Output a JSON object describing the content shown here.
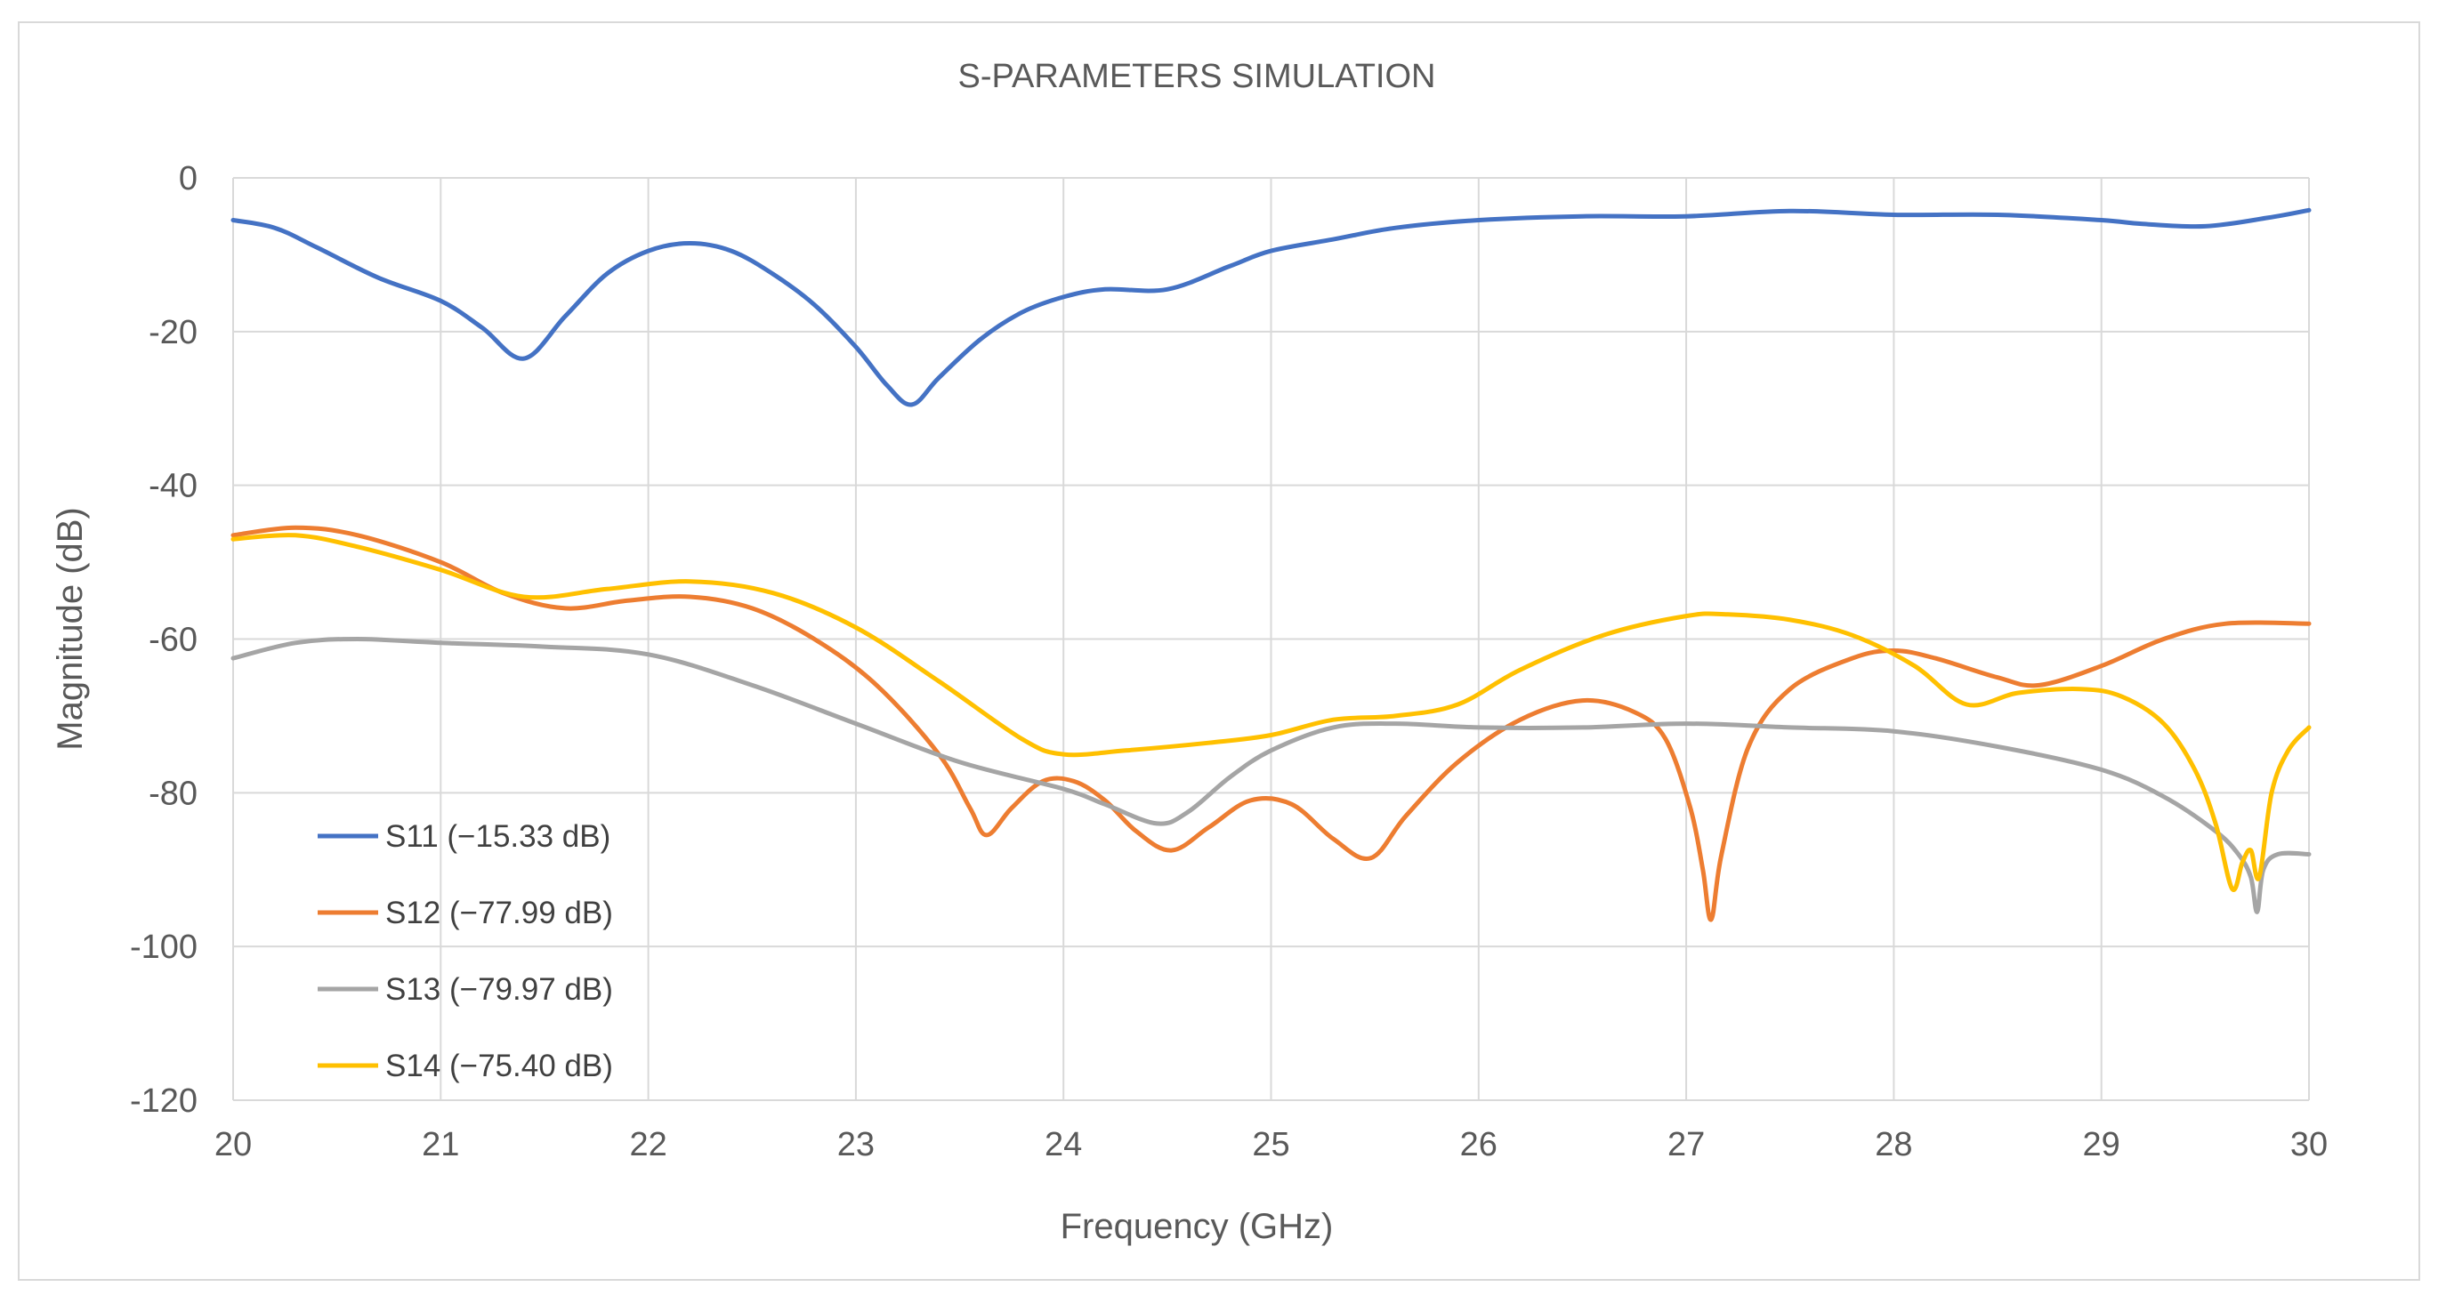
{
  "chart_data": {
    "type": "line",
    "title": "S-PARAMETERS SIMULATION",
    "xlabel": "Frequency (GHz)",
    "ylabel": "Magnitude (dB)",
    "xlim": [
      20,
      30
    ],
    "ylim": [
      -120,
      0
    ],
    "xticks": [
      20,
      21,
      22,
      23,
      24,
      25,
      26,
      27,
      28,
      29,
      30
    ],
    "yticks": [
      0,
      -20,
      -40,
      -60,
      -80,
      -100,
      -120
    ],
    "xtick_labels": [
      "20",
      "21",
      "22",
      "23",
      "24",
      "25",
      "26",
      "27",
      "28",
      "29",
      "30"
    ],
    "ytick_labels": [
      "0",
      "-20",
      "-40",
      "-60",
      "-80",
      "-100",
      "-120"
    ],
    "grid": true,
    "legend_position": "bottom-left",
    "series": [
      {
        "name": "S11",
        "legend": "S11 (−15.33 dB)",
        "color": "#4472C4",
        "x": [
          20,
          20.2,
          20.4,
          20.7,
          21,
          21.2,
          21.4,
          21.6,
          21.8,
          22,
          22.2,
          22.4,
          22.6,
          22.8,
          23,
          23.15,
          23.27,
          23.4,
          23.6,
          23.8,
          24,
          24.2,
          24.5,
          24.8,
          25,
          25.3,
          25.6,
          26,
          26.5,
          27,
          27.5,
          28,
          28.5,
          29,
          29.2,
          29.5,
          29.8,
          30
        ],
        "y": [
          -5.5,
          -6.5,
          -9,
          -13,
          -16,
          -19.5,
          -23.5,
          -18,
          -12.5,
          -9.5,
          -8.5,
          -9.5,
          -12.5,
          -16.5,
          -22,
          -27,
          -29.5,
          -26,
          -21,
          -17.5,
          -15.5,
          -14.5,
          -14.5,
          -11.5,
          -9.5,
          -8,
          -6.5,
          -5.5,
          -5,
          -5,
          -4.3,
          -4.8,
          -4.8,
          -5.5,
          -6,
          -6.3,
          -5.2,
          -4.2
        ]
      },
      {
        "name": "S12",
        "legend": "S12 (−77.99 dB)",
        "color": "#ED7D31",
        "x": [
          20,
          20.3,
          20.6,
          21,
          21.3,
          21.6,
          21.9,
          22.2,
          22.5,
          22.8,
          23.1,
          23.4,
          23.55,
          23.63,
          23.75,
          23.9,
          24.05,
          24.2,
          24.35,
          24.52,
          24.7,
          24.9,
          25.1,
          25.3,
          25.48,
          25.65,
          25.9,
          26.2,
          26.5,
          26.75,
          26.9,
          27.02,
          27.08,
          27.12,
          27.17,
          27.3,
          27.5,
          27.8,
          28,
          28.2,
          28.5,
          28.7,
          29,
          29.3,
          29.6,
          30
        ],
        "y": [
          -46.5,
          -45.5,
          -46.5,
          -50,
          -54,
          -56,
          -55,
          -54.5,
          -56,
          -60,
          -66,
          -75,
          -82,
          -85.5,
          -82,
          -78.5,
          -78.5,
          -81,
          -85,
          -87.5,
          -84.5,
          -81,
          -81.5,
          -86,
          -88.5,
          -83,
          -76,
          -70.5,
          -68,
          -69.5,
          -73,
          -82,
          -90,
          -96.5,
          -88,
          -74,
          -66.5,
          -62.5,
          -61.5,
          -62.5,
          -65,
          -66,
          -63.5,
          -60,
          -58,
          -58
        ]
      },
      {
        "name": "S13",
        "legend": "S13 (−79.97 dB)",
        "color": "#A5A5A5",
        "x": [
          20,
          20.3,
          20.6,
          21,
          21.5,
          22,
          22.5,
          23,
          23.5,
          24,
          24.2,
          24.45,
          24.6,
          24.8,
          25,
          25.3,
          25.6,
          26,
          26.5,
          27,
          27.5,
          28,
          28.5,
          29,
          29.3,
          29.55,
          29.66,
          29.72,
          29.75,
          29.78,
          29.85,
          30
        ],
        "y": [
          -62.5,
          -60.5,
          -60,
          -60.5,
          -61,
          -62,
          -66,
          -71,
          -76,
          -79.5,
          -81.5,
          -84,
          -82.5,
          -78,
          -74.5,
          -71.5,
          -71,
          -71.5,
          -71.5,
          -71,
          -71.5,
          -72,
          -74,
          -77,
          -80.5,
          -85,
          -88,
          -91,
          -95.5,
          -90,
          -88,
          -88
        ]
      },
      {
        "name": "S14",
        "legend": "S14 (−75.40 dB)",
        "color": "#FFC000",
        "x": [
          20,
          20.3,
          20.6,
          21,
          21.4,
          21.8,
          22.2,
          22.6,
          23,
          23.4,
          23.8,
          24,
          24.3,
          24.7,
          25,
          25.3,
          25.6,
          25.9,
          26.2,
          26.6,
          27,
          27.2,
          27.5,
          27.8,
          28.1,
          28.35,
          28.6,
          28.9,
          29.1,
          29.3,
          29.45,
          29.55,
          29.63,
          29.68,
          29.72,
          29.76,
          29.82,
          29.9,
          30
        ],
        "y": [
          -47,
          -46.5,
          -48,
          -51,
          -54.5,
          -53.5,
          -52.5,
          -54,
          -58.5,
          -65.5,
          -73,
          -75,
          -74.5,
          -73.5,
          -72.5,
          -70.5,
          -70,
          -68.5,
          -64,
          -59.5,
          -57,
          -56.8,
          -57.5,
          -59.5,
          -63.5,
          -68.5,
          -67,
          -66.5,
          -67.5,
          -71,
          -77,
          -84,
          -92.5,
          -89,
          -87.5,
          -91,
          -80,
          -74.5,
          -71.5
        ]
      }
    ]
  }
}
